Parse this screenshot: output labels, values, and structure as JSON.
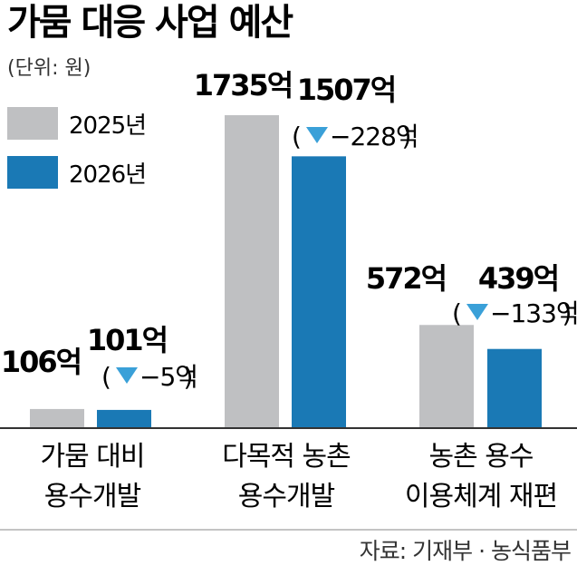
{
  "chart_data": {
    "type": "bar",
    "title": "가뭄 대응 사업 예산",
    "unit_label": "(단위: 원)",
    "source": "자료: 기재부 · 농식품부",
    "categories": [
      [
        "가뭄 대비",
        "용수개발"
      ],
      [
        "다목적 농촌",
        "용수개발"
      ],
      [
        "농촌 용수",
        "이용체계 재편"
      ]
    ],
    "series": [
      {
        "name": "2025년",
        "color": "#bfc0c2",
        "values": [
          106,
          1735,
          572
        ],
        "labels": [
          "106억",
          "1735억",
          "572억"
        ]
      },
      {
        "name": "2026년",
        "color": "#1a79b5",
        "values": [
          101,
          1507,
          439
        ],
        "labels": [
          "101억",
          "1507억",
          "439억"
        ]
      }
    ],
    "changes": [
      "−5억",
      "−228억",
      "−133억"
    ],
    "change_marker_color": "#3aa0d8",
    "ylim": [
      0,
      1735
    ]
  }
}
